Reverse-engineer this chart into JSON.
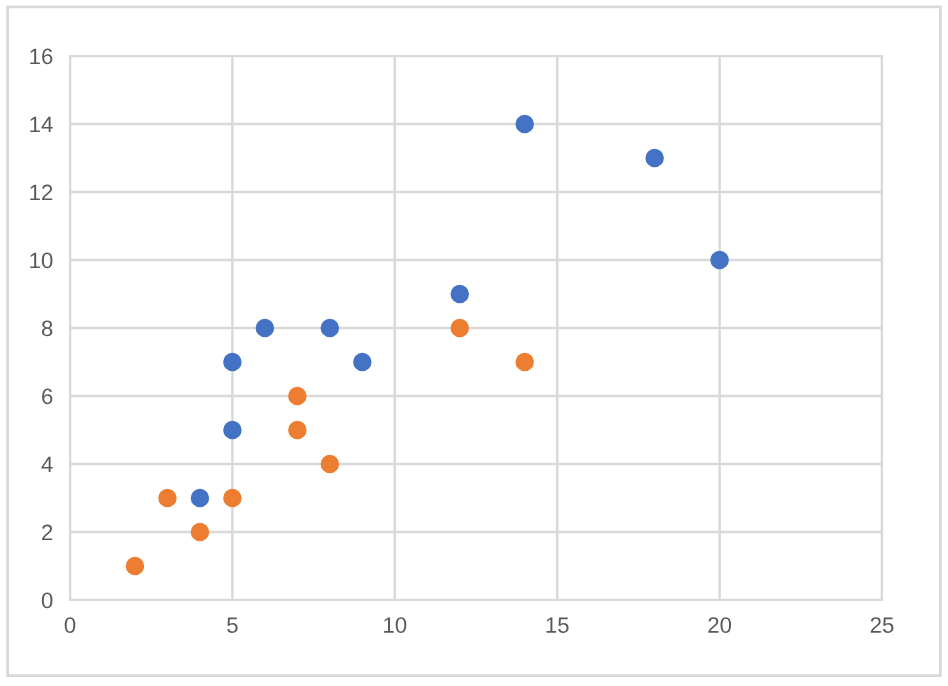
{
  "chart_data": {
    "type": "scatter",
    "xlim": [
      0,
      25
    ],
    "xticks": [
      0,
      5,
      10,
      15,
      20,
      25
    ],
    "ylim": [
      0,
      16
    ],
    "yticks": [
      0,
      2,
      4,
      6,
      8,
      10,
      12,
      14,
      16
    ],
    "grid": true,
    "marker": "circle",
    "legend": false,
    "series": [
      {
        "color": "#4472c4",
        "x": [
          4,
          5,
          5,
          6,
          8,
          9,
          12,
          14,
          18,
          20
        ],
        "values": [
          3,
          5,
          7,
          8,
          8,
          7,
          9,
          14,
          13,
          10
        ]
      },
      {
        "color": "#ed7d31",
        "x": [
          2,
          3,
          4,
          5,
          7,
          7,
          8,
          12,
          14
        ],
        "values": [
          1,
          3,
          2,
          3,
          6,
          5,
          4,
          8,
          7
        ]
      }
    ]
  }
}
